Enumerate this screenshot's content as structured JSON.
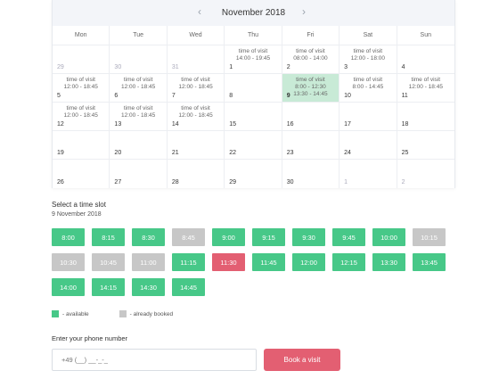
{
  "calendar": {
    "title": "November 2018",
    "prev_arrow": "‹",
    "next_arrow": "›",
    "weekdays": [
      "Mon",
      "Tue",
      "Wed",
      "Thu",
      "Fri",
      "Sat",
      "Sun"
    ],
    "weeks": [
      [
        {
          "day": "29",
          "other": true,
          "visit": []
        },
        {
          "day": "30",
          "other": true,
          "visit": []
        },
        {
          "day": "31",
          "other": true,
          "visit": []
        },
        {
          "day": "1",
          "visit": [
            "time of visit",
            "14:00 - 19:45"
          ]
        },
        {
          "day": "2",
          "visit": [
            "time of visit",
            "08:00 - 14:00"
          ]
        },
        {
          "day": "3",
          "visit": [
            "time of visit",
            "12:00 - 18:00"
          ]
        },
        {
          "day": "4",
          "visit": []
        }
      ],
      [
        {
          "day": "5",
          "visit": [
            "time of visit",
            "12:00 - 18:45"
          ]
        },
        {
          "day": "6",
          "visit": [
            "time of visit",
            "12:00 - 18:45"
          ]
        },
        {
          "day": "7",
          "visit": [
            "time of visit",
            "12:00 - 18:45"
          ]
        },
        {
          "day": "8",
          "visit": []
        },
        {
          "day": "9",
          "selected": true,
          "visit": [
            "time of visit",
            "8:00 - 12:30",
            "13:30 - 14:45"
          ]
        },
        {
          "day": "10",
          "visit": [
            "time of visit",
            "8:00 - 14:45"
          ]
        },
        {
          "day": "11",
          "visit": [
            "time of visit",
            "12:00 - 18:45"
          ]
        }
      ],
      [
        {
          "day": "12",
          "visit": [
            "time of visit",
            "12:00 - 18:45"
          ]
        },
        {
          "day": "13",
          "visit": [
            "time of visit",
            "12:00 - 18:45"
          ]
        },
        {
          "day": "14",
          "visit": [
            "time of visit",
            "12:00 - 18:45"
          ]
        },
        {
          "day": "15",
          "visit": []
        },
        {
          "day": "16",
          "visit": []
        },
        {
          "day": "17",
          "visit": []
        },
        {
          "day": "18",
          "visit": []
        }
      ],
      [
        {
          "day": "19",
          "visit": []
        },
        {
          "day": "20",
          "visit": []
        },
        {
          "day": "21",
          "visit": []
        },
        {
          "day": "22",
          "visit": []
        },
        {
          "day": "23",
          "visit": []
        },
        {
          "day": "24",
          "visit": []
        },
        {
          "day": "25",
          "visit": []
        }
      ],
      [
        {
          "day": "26",
          "visit": []
        },
        {
          "day": "27",
          "visit": []
        },
        {
          "day": "28",
          "visit": []
        },
        {
          "day": "29",
          "visit": []
        },
        {
          "day": "30",
          "visit": []
        },
        {
          "day": "1",
          "other": true,
          "visit": []
        },
        {
          "day": "2",
          "other": true,
          "visit": []
        }
      ]
    ]
  },
  "slots_section": {
    "title": "Select a time slot",
    "date": "9 November 2018",
    "slots": [
      {
        "time": "8:00",
        "status": "available"
      },
      {
        "time": "8:15",
        "status": "available"
      },
      {
        "time": "8:30",
        "status": "available"
      },
      {
        "time": "8:45",
        "status": "booked"
      },
      {
        "time": "9:00",
        "status": "available"
      },
      {
        "time": "9:15",
        "status": "available"
      },
      {
        "time": "9:30",
        "status": "available"
      },
      {
        "time": "9:45",
        "status": "available"
      },
      {
        "time": "10:00",
        "status": "available"
      },
      {
        "time": "10:15",
        "status": "booked"
      },
      {
        "time": "10:30",
        "status": "booked"
      },
      {
        "time": "10:45",
        "status": "booked"
      },
      {
        "time": "11:00",
        "status": "booked"
      },
      {
        "time": "11:15",
        "status": "available"
      },
      {
        "time": "11:30",
        "status": "selected"
      },
      {
        "time": "11:45",
        "status": "available"
      },
      {
        "time": "12:00",
        "status": "available"
      },
      {
        "time": "12:15",
        "status": "available"
      },
      {
        "time": "13:30",
        "status": "available"
      },
      {
        "time": "13:45",
        "status": "available"
      },
      {
        "time": "14:00",
        "status": "available"
      },
      {
        "time": "14:15",
        "status": "available"
      },
      {
        "time": "14:30",
        "status": "available"
      },
      {
        "time": "14:45",
        "status": "available"
      }
    ]
  },
  "legend": {
    "available": "- available",
    "booked": "- already booked"
  },
  "form": {
    "phone_label": "Enter your phone number",
    "phone_placeholder": "+49 (__) __-_-_",
    "book_label": "Book a visit"
  },
  "colors": {
    "available": "#47c888",
    "booked": "#c7c7c7",
    "selected_slot": "#e35f72",
    "selected_day": "#c8ead6",
    "book_button": "#e35f72"
  }
}
